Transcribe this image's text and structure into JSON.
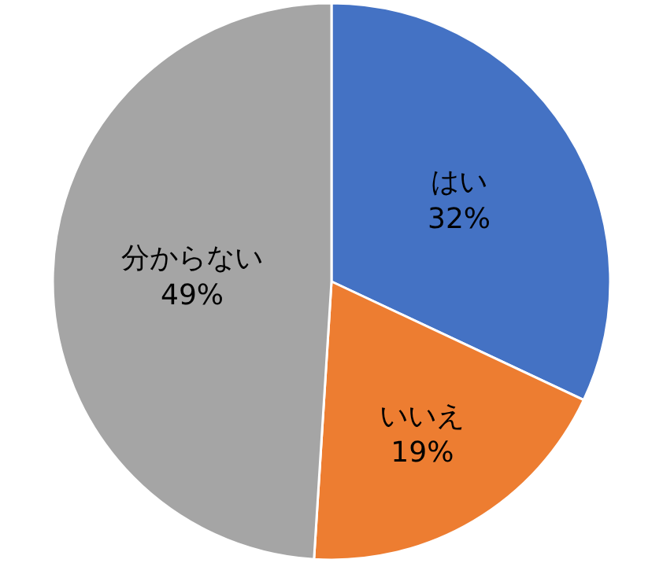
{
  "chart_data": {
    "type": "pie",
    "categories": [
      "はい",
      "いいえ",
      "分からない"
    ],
    "values": [
      32,
      19,
      49
    ],
    "colors": [
      "#4472c4",
      "#ed7d31",
      "#a5a5a5"
    ],
    "value_labels": [
      "32%",
      "19%",
      "49%"
    ]
  }
}
